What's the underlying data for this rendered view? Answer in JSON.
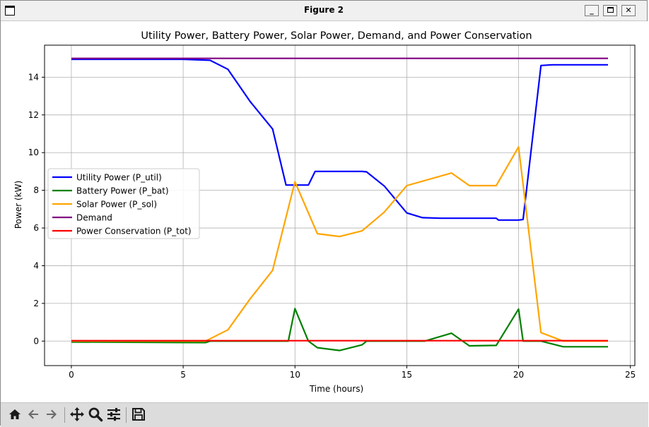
{
  "window": {
    "title": "Figure 2"
  },
  "toolbar": {
    "buttons": [
      {
        "name": "home-icon"
      },
      {
        "name": "back-arrow-icon"
      },
      {
        "name": "forward-arrow-icon"
      },
      {
        "name": "pan-icon"
      },
      {
        "name": "zoom-icon"
      },
      {
        "name": "configure-subplots-icon"
      },
      {
        "name": "save-icon"
      }
    ]
  },
  "chart_data": {
    "type": "line",
    "title": "Utility Power, Battery Power, Solar Power, Demand, and Power Conservation",
    "xlabel": "Time (hours)",
    "ylabel": "Power (kW)",
    "xlim": [
      -1.2,
      25.2
    ],
    "ylim": [
      -1.3,
      15.7
    ],
    "xticks": [
      0,
      5,
      10,
      15,
      20,
      25
    ],
    "yticks": [
      0,
      2,
      4,
      6,
      8,
      10,
      12,
      14
    ],
    "grid": true,
    "legend_position": "center-left",
    "series": [
      {
        "name": "Utility Power (P_util)",
        "color": "#0000ff",
        "points": [
          [
            0,
            14.95
          ],
          [
            5,
            14.95
          ],
          [
            6.2,
            14.9
          ],
          [
            7,
            14.42
          ],
          [
            8,
            12.7
          ],
          [
            9,
            11.25
          ],
          [
            9.6,
            8.28
          ],
          [
            10,
            8.28
          ],
          [
            10.6,
            8.28
          ],
          [
            10.9,
            9.0
          ],
          [
            13,
            9.0
          ],
          [
            13.2,
            8.98
          ],
          [
            14,
            8.22
          ],
          [
            15,
            6.8
          ],
          [
            15.7,
            6.55
          ],
          [
            16.5,
            6.52
          ],
          [
            19,
            6.52
          ],
          [
            19.1,
            6.42
          ],
          [
            20,
            6.42
          ],
          [
            20.2,
            6.45
          ],
          [
            21,
            14.62
          ],
          [
            21.5,
            14.66
          ],
          [
            24,
            14.66
          ]
        ]
      },
      {
        "name": "Battery Power (P_bat)",
        "color": "#008000",
        "points": [
          [
            0,
            -0.05
          ],
          [
            6,
            -0.08
          ],
          [
            6.2,
            0.0
          ],
          [
            9.7,
            0.0
          ],
          [
            10,
            1.72
          ],
          [
            10.6,
            0.0
          ],
          [
            11,
            -0.35
          ],
          [
            12,
            -0.5
          ],
          [
            13,
            -0.2
          ],
          [
            13.2,
            0.0
          ],
          [
            15.8,
            0.0
          ],
          [
            17,
            0.42
          ],
          [
            17.8,
            -0.25
          ],
          [
            19,
            -0.23
          ],
          [
            20,
            1.7
          ],
          [
            20.2,
            0.0
          ],
          [
            21,
            0.0
          ],
          [
            22,
            -0.3
          ],
          [
            24,
            -0.3
          ]
        ]
      },
      {
        "name": "Solar Power (P_sol)",
        "color": "#ffa500",
        "points": [
          [
            0,
            0
          ],
          [
            6,
            0
          ],
          [
            7,
            0.6
          ],
          [
            8,
            2.25
          ],
          [
            9,
            3.75
          ],
          [
            10,
            8.45
          ],
          [
            11,
            5.7
          ],
          [
            12,
            5.55
          ],
          [
            13,
            5.85
          ],
          [
            14,
            6.85
          ],
          [
            15,
            8.25
          ],
          [
            17,
            8.92
          ],
          [
            17.8,
            8.25
          ],
          [
            19,
            8.25
          ],
          [
            20,
            10.3
          ],
          [
            21,
            0.45
          ],
          [
            22,
            0.0
          ],
          [
            24,
            0.0
          ]
        ]
      },
      {
        "name": "Demand",
        "color": "#800080",
        "points": [
          [
            0,
            15.0
          ],
          [
            24,
            15.0
          ]
        ]
      },
      {
        "name": "Power Conservation (P_tot)",
        "color": "#ff0000",
        "points": [
          [
            0,
            0.02
          ],
          [
            24,
            0.02
          ]
        ]
      }
    ]
  }
}
